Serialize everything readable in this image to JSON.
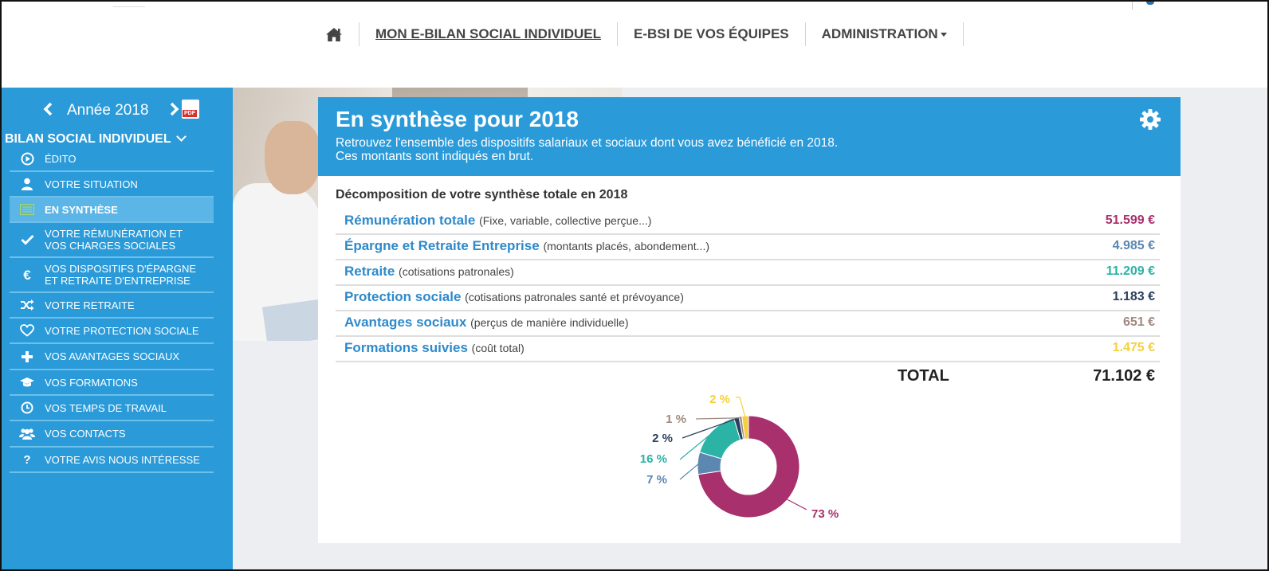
{
  "nav": {
    "items": [
      {
        "label": "MON E-BILAN SOCIAL INDIVIDUEL",
        "active": true
      },
      {
        "label": "E-BSI DE VOS ÉQUIPES",
        "active": false
      },
      {
        "label": "ADMINISTRATION",
        "active": false,
        "dropdown": true
      }
    ],
    "home_icon": "home-icon"
  },
  "sidebar": {
    "year_label": "Année 2018",
    "pdf_label": "PDF",
    "section_title": "BILAN SOCIAL INDIVIDUEL",
    "items": [
      {
        "label": "ÉDITO",
        "icon": "play-circle-icon",
        "active": false
      },
      {
        "label": "VOTRE SITUATION",
        "icon": "user-icon",
        "active": false
      },
      {
        "label": "EN SYNTHÈSE",
        "icon": "list-icon",
        "active": true
      },
      {
        "label": "VOTRE RÉMUNÉRATION ET VOS CHARGES SOCIALES",
        "line1": "VOTRE RÉMUNÉRATION ET",
        "line2": "VOS CHARGES SOCIALES",
        "icon": "check-icon",
        "active": false
      },
      {
        "label": "VOS DISPOSITIFS D'ÉPARGNE ET RETRAITE D'ENTREPRISE",
        "line1": "VOS DISPOSITIFS D'ÉPARGNE",
        "line2": "ET RETRAITE D'ENTREPRISE",
        "icon": "euro-icon",
        "active": false
      },
      {
        "label": "VOTRE RETRAITE",
        "icon": "shuffle-icon",
        "active": false
      },
      {
        "label": "VOTRE PROTECTION SOCIALE",
        "icon": "heart-icon",
        "active": false
      },
      {
        "label": "VOS AVANTAGES SOCIAUX",
        "icon": "plus-icon",
        "active": false
      },
      {
        "label": "VOS FORMATIONS",
        "icon": "graduation-cap-icon",
        "active": false
      },
      {
        "label": "VOS TEMPS DE TRAVAIL",
        "icon": "clock-icon",
        "active": false
      },
      {
        "label": "VOS CONTACTS",
        "icon": "users-icon",
        "active": false
      },
      {
        "label": "VOTRE AVIS NOUS INTÉRESSE",
        "icon": "question-icon",
        "active": false
      }
    ]
  },
  "synthesis": {
    "title": "En synthèse pour 2018",
    "subtitle_line1": "Retrouvez l'ensemble des dispositifs salariaux et sociaux dont vous avez bénéficié en 2018.",
    "subtitle_line2": "Ces montants sont indiqués en brut.",
    "table_title": "Décomposition de votre synthèse totale en 2018",
    "rows": [
      {
        "name": "Rémunération totale",
        "detail": "(Fixe, variable, collective perçue...)",
        "amount": "51.599 €",
        "color": "#a8306c"
      },
      {
        "name": "Épargne et Retraite Entreprise",
        "detail": "(montants placés, abondement...)",
        "amount": "4.985 €",
        "color": "#5b87b0"
      },
      {
        "name": "Retraite",
        "detail": "(cotisations patronales)",
        "amount": "11.209 €",
        "color": "#2bb3a6"
      },
      {
        "name": "Protection sociale",
        "detail": "(cotisations patronales santé et prévoyance)",
        "amount": "1.183 €",
        "color": "#2a3f5e"
      },
      {
        "name": "Avantages sociaux",
        "detail": "(perçus de manière individuelle)",
        "amount": "651 €",
        "color": "#a08a80"
      },
      {
        "name": "Formations suivies",
        "detail": "(coût total)",
        "amount": "1.475 €",
        "color": "#f4d03f"
      }
    ],
    "total_label": "TOTAL",
    "total_value": "71.102 €"
  },
  "chart_data": {
    "type": "pie",
    "donut": true,
    "slices": [
      {
        "category": "Rémunération totale",
        "value": 51599,
        "label": "73 %",
        "color": "#a8306c"
      },
      {
        "category": "Épargne et Retraite Entreprise",
        "value": 4985,
        "label": "7 %",
        "color": "#5b87b0"
      },
      {
        "category": "Retraite",
        "value": 11209,
        "label": "16 %",
        "color": "#2bb3a6"
      },
      {
        "category": "Protection sociale",
        "value": 1183,
        "label": "2 %",
        "color": "#2a3f5e"
      },
      {
        "category": "Avantages sociaux",
        "value": 651,
        "label": "1 %",
        "color": "#a08a80"
      },
      {
        "category": "Formations suivies",
        "value": 1475,
        "label": "2 %",
        "color": "#f4d03f"
      }
    ]
  },
  "colors": {
    "primary": "#2a9ad9",
    "sidebar_active": "#5bb5e6",
    "link_blue": "#2e8acb",
    "main_bg": "#eceef2"
  }
}
